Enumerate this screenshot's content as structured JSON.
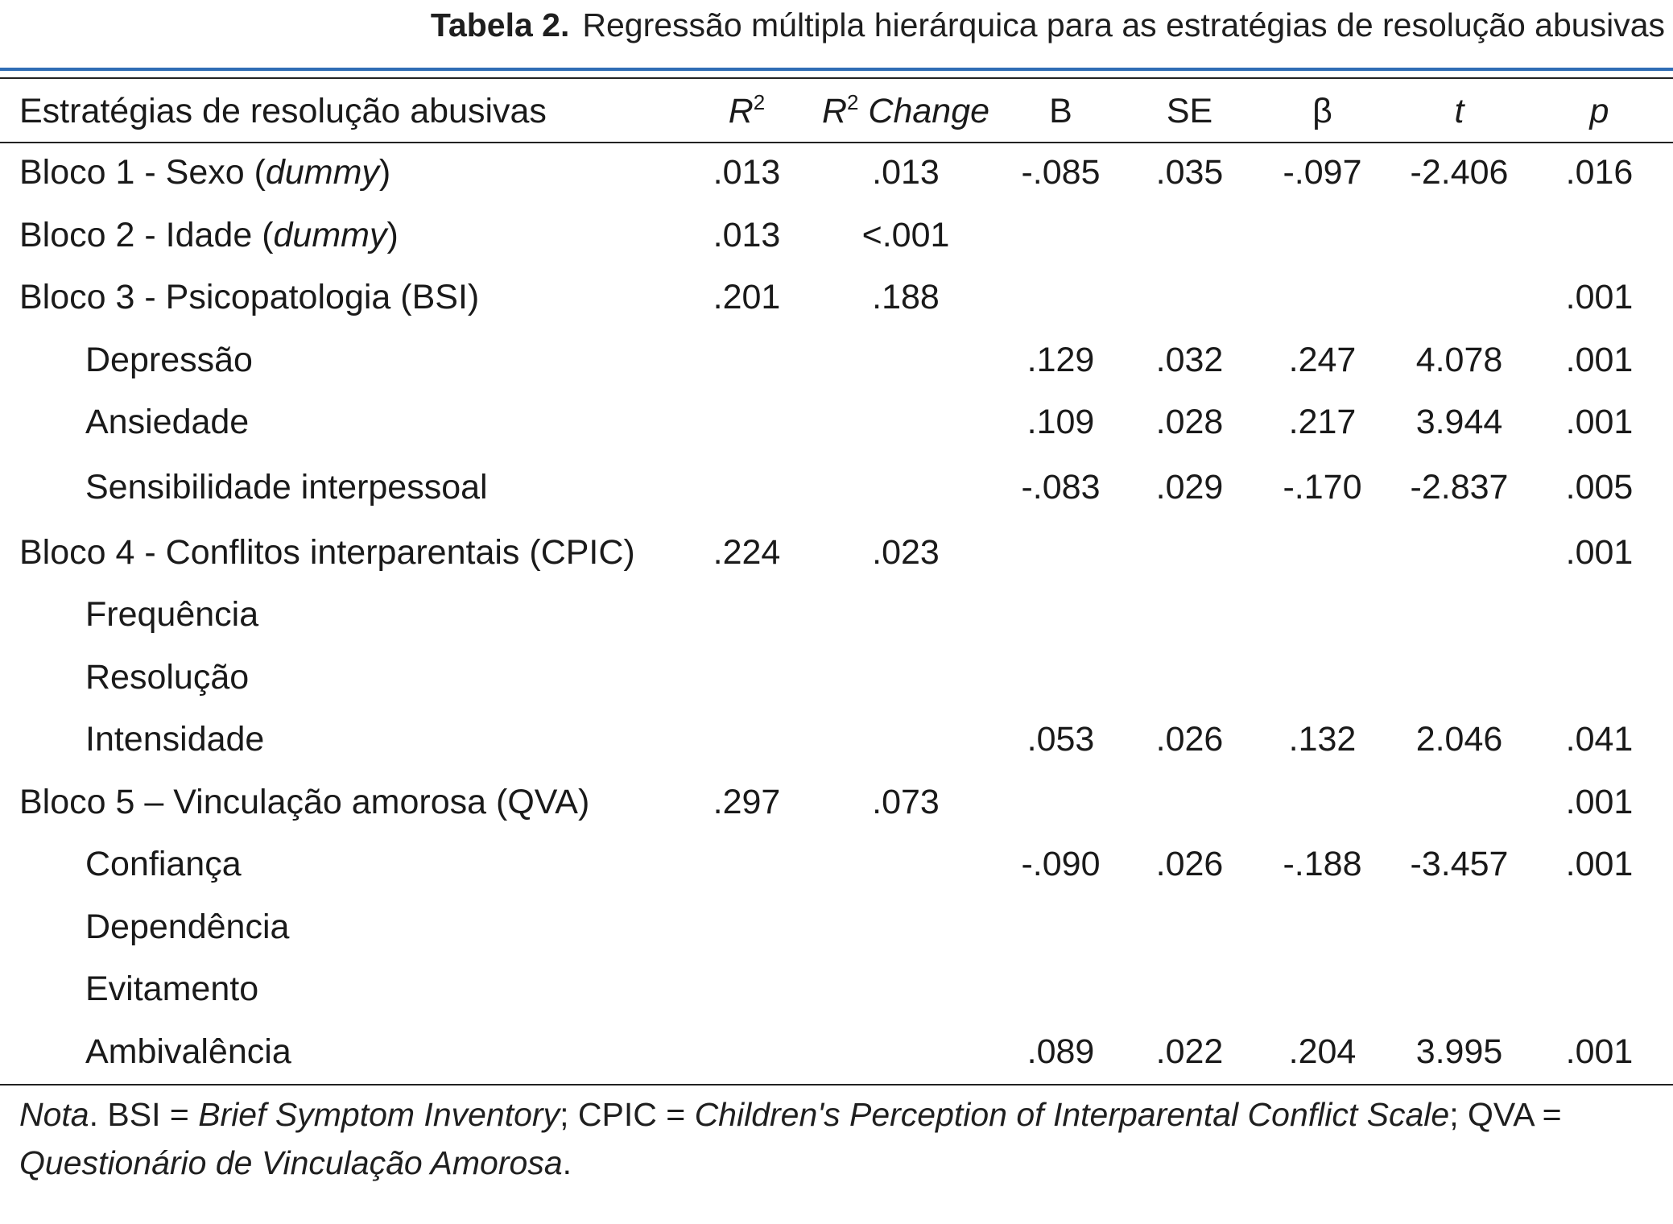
{
  "caption": {
    "label": "Tabela 2.",
    "title": "Regressão múltipla hierárquica para as estratégias de resolução abusivas"
  },
  "header": {
    "col_name": "Estratégias de resolução abusivas",
    "r2_base": "R",
    "r2_sup": "2",
    "r2change_base": "R",
    "r2change_sup": "2",
    "r2change_suffix": " Change",
    "b": "B",
    "se": "SE",
    "beta": "β",
    "t": "t",
    "p": "p"
  },
  "rows": [
    {
      "name": "Bloco 1 - Sexo (",
      "name_em": "dummy",
      "name_tail": ")",
      "r2": ".013",
      "r2c": ".013",
      "b": "-.085",
      "se": ".035",
      "beta": "-.097",
      "t": "-2.406",
      "p": ".016"
    },
    {
      "name": "Bloco 2 - Idade (",
      "name_em": "dummy",
      "name_tail": ")",
      "r2": ".013",
      "r2c": "<.001",
      "b": "",
      "se": "",
      "beta": "",
      "t": "",
      "p": ""
    },
    {
      "name": "Bloco 3 - Psicopatologia (BSI)",
      "r2": ".201",
      "r2c": ".188",
      "b": "",
      "se": "",
      "beta": "",
      "t": "",
      "p": ".001"
    },
    {
      "name": "Depressão",
      "r2": "",
      "r2c": "",
      "b": ".129",
      "se": ".032",
      "beta": ".247",
      "t": "4.078",
      "p": ".001"
    },
    {
      "name": "Ansiedade",
      "r2": "",
      "r2c": "",
      "b": ".109",
      "se": ".028",
      "beta": ".217",
      "t": "3.944",
      "p": ".001"
    },
    {
      "name": "Sensibilidade interpessoal",
      "r2": "",
      "r2c": "",
      "b": "-.083",
      "se": ".029",
      "beta": "-.170",
      "t": "-2.837",
      "p": ".005"
    },
    {
      "name": "Bloco 4 - Conflitos interparentais (CPIC)",
      "r2": ".224",
      "r2c": ".023",
      "b": "",
      "se": "",
      "beta": "",
      "t": "",
      "p": ".001"
    },
    {
      "name": "Frequência",
      "r2": "",
      "r2c": "",
      "b": "",
      "se": "",
      "beta": "",
      "t": "",
      "p": ""
    },
    {
      "name": "Resolução",
      "r2": "",
      "r2c": "",
      "b": "",
      "se": "",
      "beta": "",
      "t": "",
      "p": ""
    },
    {
      "name": "Intensidade",
      "r2": "",
      "r2c": "",
      "b": ".053",
      "se": ".026",
      "beta": ".132",
      "t": "2.046",
      "p": ".041"
    },
    {
      "name": "Bloco 5 – Vinculação amorosa (QVA)",
      "r2": ".297",
      "r2c": ".073",
      "b": "",
      "se": "",
      "beta": "",
      "t": "",
      "p": ".001"
    },
    {
      "name": "Confiança",
      "r2": "",
      "r2c": "",
      "b": "-.090",
      "se": ".026",
      "beta": "-.188",
      "t": "-3.457",
      "p": ".001"
    },
    {
      "name": "Dependência",
      "r2": "",
      "r2c": "",
      "b": "",
      "se": "",
      "beta": "",
      "t": "",
      "p": ""
    },
    {
      "name": "Evitamento",
      "r2": "",
      "r2c": "",
      "b": "",
      "se": "",
      "beta": "",
      "t": "",
      "p": ""
    },
    {
      "name": "Ambivalência",
      "r2": "",
      "r2c": "",
      "b": ".089",
      "se": ".022",
      "beta": ".204",
      "t": "3.995",
      "p": ".001"
    }
  ],
  "note": {
    "nota": "Nota",
    "t1": ". BSI = ",
    "bsi": "Brief Symptom Inventory",
    "t2": "; CPIC = ",
    "cpic": "Children's Perception of Interparental Conflict Scale",
    "t3": "; QVA = ",
    "qva": "Questionário de Vinculação Amorosa",
    "t4": "."
  }
}
